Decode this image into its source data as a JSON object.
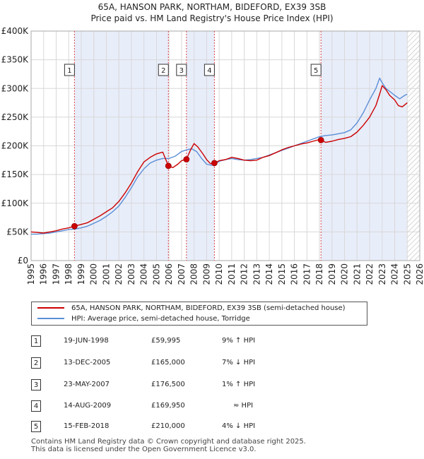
{
  "header": {
    "title_line1": "65A, HANSON PARK, NORTHAM, BIDEFORD, EX39 3SB",
    "title_line2": "Price paid vs. HM Land Registry's House Price Index (HPI)"
  },
  "colors": {
    "price_line": "#cc0000",
    "hpi_line": "#5b8ed6",
    "shade": "#e8edfa",
    "grid": "#d8d8d8",
    "marker_line": "#dd4444"
  },
  "chart_data": {
    "type": "line",
    "title": "Price paid vs. HM Land Registry's House Price Index (HPI)",
    "xlabel": "",
    "ylabel": "",
    "xlim": [
      1995,
      2026
    ],
    "ylim": [
      0,
      400000
    ],
    "x_ticks": [
      "1995",
      "1996",
      "1997",
      "1998",
      "1999",
      "2000",
      "2001",
      "2002",
      "2003",
      "2004",
      "2005",
      "2006",
      "2007",
      "2008",
      "2009",
      "2010",
      "2011",
      "2012",
      "2013",
      "2014",
      "2015",
      "2016",
      "2017",
      "2018",
      "2019",
      "2020",
      "2021",
      "2022",
      "2023",
      "2024",
      "2025",
      "2026"
    ],
    "y_ticks": [
      {
        "value": 0,
        "label": "£0"
      },
      {
        "value": 50000,
        "label": "£50K"
      },
      {
        "value": 100000,
        "label": "£100K"
      },
      {
        "value": 150000,
        "label": "£150K"
      },
      {
        "value": 200000,
        "label": "£200K"
      },
      {
        "value": 250000,
        "label": "£250K"
      },
      {
        "value": 300000,
        "label": "£300K"
      },
      {
        "value": 350000,
        "label": "£350K"
      },
      {
        "value": 400000,
        "label": "£400K"
      }
    ],
    "shaded_ranges": [
      [
        1998.46,
        2005.95
      ],
      [
        2007.39,
        2009.62
      ],
      [
        2018.12,
        2025.0
      ]
    ],
    "hatched_range": [
      2025.0,
      2026.0
    ],
    "series": [
      {
        "name": "65A, HANSON PARK, NORTHAM, BIDEFORD, EX39 3SB (semi-detached house)",
        "x": [
          1995.0,
          1995.5,
          1996.0,
          1996.5,
          1997.0,
          1997.5,
          1998.0,
          1998.46,
          1999.0,
          1999.5,
          2000.0,
          2000.5,
          2001.0,
          2001.5,
          2002.0,
          2002.5,
          2003.0,
          2003.5,
          2004.0,
          2004.5,
          2005.0,
          2005.5,
          2005.95,
          2006.3,
          2006.7,
          2007.0,
          2007.39,
          2007.7,
          2008.0,
          2008.3,
          2008.7,
          2009.0,
          2009.3,
          2009.62,
          2010.0,
          2010.5,
          2011.0,
          2011.5,
          2012.0,
          2012.5,
          2013.0,
          2013.5,
          2014.0,
          2014.5,
          2015.0,
          2015.5,
          2016.0,
          2016.5,
          2017.0,
          2017.5,
          2018.0,
          2018.12,
          2018.5,
          2019.0,
          2019.5,
          2020.0,
          2020.5,
          2021.0,
          2021.5,
          2022.0,
          2022.5,
          2022.8,
          2023.0,
          2023.3,
          2023.6,
          2024.0,
          2024.3,
          2024.6,
          2025.0
        ],
        "y": [
          50000,
          49000,
          48000,
          50000,
          52000,
          55000,
          57000,
          59995,
          63000,
          66000,
          72000,
          78000,
          85000,
          92000,
          103000,
          118000,
          135000,
          155000,
          172000,
          180000,
          186000,
          189000,
          165000,
          162000,
          168000,
          174000,
          176500,
          192000,
          204000,
          198000,
          186000,
          176000,
          169000,
          169950,
          174000,
          176000,
          180000,
          178000,
          175000,
          174000,
          175000,
          180000,
          183000,
          188000,
          193000,
          197000,
          200000,
          203000,
          205000,
          208000,
          211000,
          210000,
          206000,
          208000,
          211000,
          213000,
          216000,
          224000,
          236000,
          250000,
          270000,
          290000,
          305000,
          298000,
          288000,
          280000,
          270000,
          268000,
          275000
        ]
      },
      {
        "name": "HPI: Average price, semi-detached house, Torridge",
        "x": [
          1995.0,
          1995.5,
          1996.0,
          1996.5,
          1997.0,
          1997.5,
          1998.0,
          1998.5,
          1999.0,
          1999.5,
          2000.0,
          2000.5,
          2001.0,
          2001.5,
          2002.0,
          2002.5,
          2003.0,
          2003.5,
          2004.0,
          2004.5,
          2005.0,
          2005.5,
          2006.0,
          2006.5,
          2007.0,
          2007.4,
          2007.8,
          2008.2,
          2008.6,
          2009.0,
          2009.4,
          2009.8,
          2010.0,
          2010.5,
          2011.0,
          2011.5,
          2012.0,
          2012.5,
          2013.0,
          2013.5,
          2014.0,
          2014.5,
          2015.0,
          2015.5,
          2016.0,
          2016.5,
          2017.0,
          2017.5,
          2018.0,
          2018.5,
          2019.0,
          2019.5,
          2020.0,
          2020.5,
          2021.0,
          2021.5,
          2022.0,
          2022.5,
          2022.8,
          2023.0,
          2023.3,
          2023.6,
          2024.0,
          2024.4,
          2024.8,
          2025.0
        ],
        "y": [
          46000,
          46000,
          47000,
          48000,
          50000,
          52000,
          54000,
          55000,
          57000,
          60000,
          65000,
          70000,
          77000,
          85000,
          95000,
          110000,
          127000,
          146000,
          160000,
          170000,
          175000,
          178000,
          178000,
          182000,
          190000,
          193000,
          195000,
          190000,
          178000,
          168000,
          166000,
          170000,
          173000,
          176000,
          178000,
          176000,
          175000,
          176000,
          178000,
          180000,
          184000,
          188000,
          192000,
          196000,
          200000,
          204000,
          208000,
          212000,
          216000,
          218000,
          219000,
          221000,
          223000,
          228000,
          240000,
          258000,
          280000,
          300000,
          318000,
          310000,
          300000,
          295000,
          288000,
          282000,
          288000,
          290000
        ]
      }
    ],
    "sales": [
      {
        "id": "1",
        "x": 1998.46,
        "y": 59995,
        "date": "19-JUN-1998",
        "price": "£59,995",
        "hpi": "9% ↑ HPI"
      },
      {
        "id": "2",
        "x": 2005.95,
        "y": 165000,
        "date": "13-DEC-2005",
        "price": "£165,000",
        "hpi": "7% ↓ HPI"
      },
      {
        "id": "3",
        "x": 2007.39,
        "y": 176500,
        "date": "23-MAY-2007",
        "price": "£176,500",
        "hpi": "1% ↑ HPI"
      },
      {
        "id": "4",
        "x": 2009.62,
        "y": 169950,
        "date": "14-AUG-2009",
        "price": "£169,950",
        "hpi": "≈ HPI"
      },
      {
        "id": "5",
        "x": 2018.12,
        "y": 210000,
        "date": "15-FEB-2018",
        "price": "£210,000",
        "hpi": "4% ↓ HPI"
      }
    ]
  },
  "legend": {
    "price_label": "65A, HANSON PARK, NORTHAM, BIDEFORD, EX39 3SB (semi-detached house)",
    "hpi_label": "HPI: Average price, semi-detached house, Torridge"
  },
  "footer": {
    "line1": "Contains HM Land Registry data © Crown copyright and database right 2025.",
    "line2": "This data is licensed under the Open Government Licence v3.0."
  }
}
